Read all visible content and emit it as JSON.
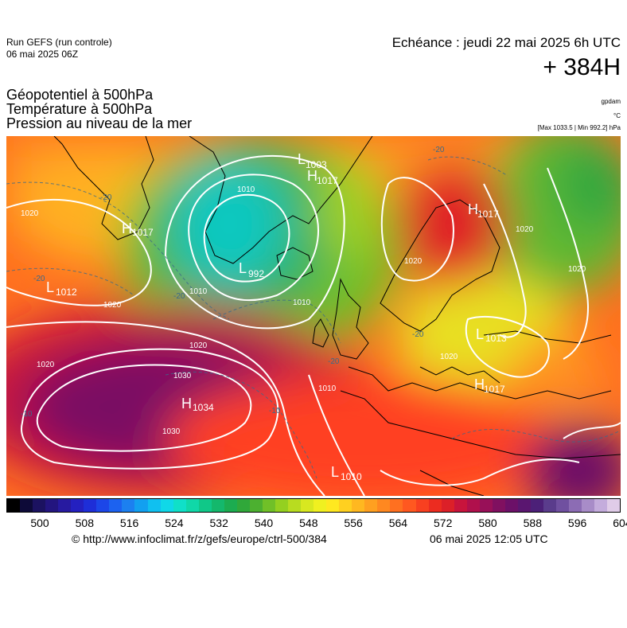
{
  "header": {
    "run_name": "Run GEFS (run controle)",
    "run_date": "06 mai 2025 06Z",
    "echeance": "Echéance : jeudi 22 mai 2025 6h UTC",
    "horizon": "+ 384H",
    "params": [
      "Géopotentiel à 500hPa",
      "Température à 500hPa",
      "Pression au niveau de la mer"
    ],
    "units": [
      "gpdam",
      "°C"
    ],
    "maxmin": "[Max 1033.5 | Min 992.2] hPa"
  },
  "colorbar": {
    "colors": [
      "#000000",
      "#0d0a38",
      "#1b1260",
      "#23157f",
      "#271aa0",
      "#2420c0",
      "#1e2ed8",
      "#1c46e8",
      "#1c62f0",
      "#1c80f0",
      "#12a0f0",
      "#10c0f0",
      "#10d8e8",
      "#10e0c8",
      "#10d8a8",
      "#10c888",
      "#14b86c",
      "#1cac50",
      "#30a83a",
      "#4cb030",
      "#70c028",
      "#94d020",
      "#b8dc20",
      "#d8e820",
      "#f0f020",
      "#ffe820",
      "#ffd020",
      "#ffb820",
      "#ffa020",
      "#ff8820",
      "#ff7020",
      "#ff5820",
      "#f84020",
      "#ec2c20",
      "#dc2028",
      "#c8143c",
      "#b0104c",
      "#981058",
      "#801060",
      "#6c1068",
      "#5a1670",
      "#4c2078",
      "#5a3c8c",
      "#7050a0",
      "#8c6cb4",
      "#a88cc8",
      "#c4acdc",
      "#e0cce8"
    ],
    "ticks": [
      "500",
      "508",
      "516",
      "524",
      "532",
      "540",
      "548",
      "556",
      "564",
      "572",
      "580",
      "588",
      "596",
      "604"
    ]
  },
  "map": {
    "pressure_centers": [
      {
        "letter": "H",
        "value": "1034"
      },
      {
        "letter": "L",
        "value": "992"
      },
      {
        "letter": "L",
        "value": "1003"
      },
      {
        "letter": "H",
        "value": "1017"
      },
      {
        "letter": "H",
        "value": "1017"
      },
      {
        "letter": "L",
        "value": "1012"
      },
      {
        "letter": "H",
        "value": "1017"
      },
      {
        "letter": "L",
        "value": "1013"
      },
      {
        "letter": "L",
        "value": "1010"
      },
      {
        "letter": "H",
        "value": "1017"
      }
    ],
    "isobar_labels": [
      "1020",
      "1020",
      "1020",
      "1020",
      "1030",
      "1030",
      "1010",
      "1010",
      "1010",
      "1010",
      "1020",
      "1020",
      "1020",
      "1020"
    ],
    "temp_labels": [
      "-20",
      "-20",
      "-20",
      "-20",
      "-10",
      "-10",
      "-20",
      "-20"
    ]
  },
  "footer": {
    "url": "© http://www.infoclimat.fr/z/gefs/europe/ctrl-500/384",
    "generated": "06 mai 2025 12:05 UTC"
  }
}
